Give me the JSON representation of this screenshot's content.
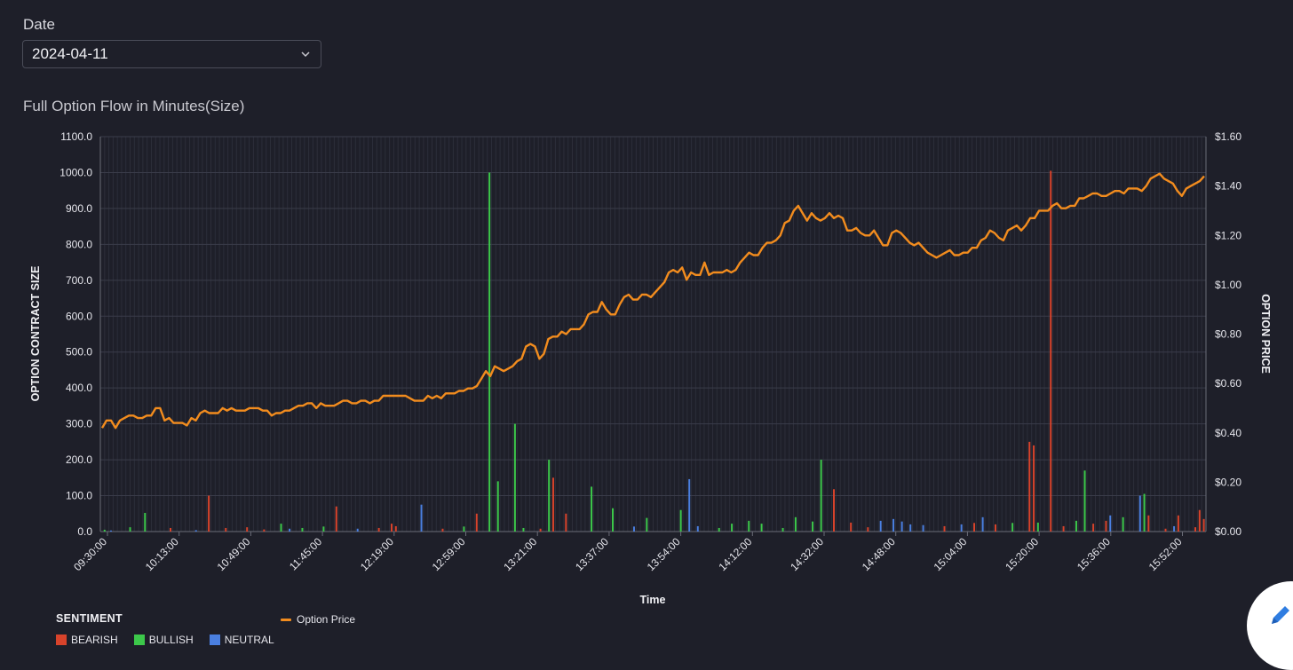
{
  "date_picker": {
    "label": "Date",
    "value": "2024-04-11"
  },
  "chart_title": "Full Option Flow in Minutes(Size)",
  "legend": {
    "title": "SENTIMENT",
    "items": [
      {
        "label": "BEARISH",
        "color": "#d8432b"
      },
      {
        "label": "BULLISH",
        "color": "#3cc84a"
      },
      {
        "label": "NEUTRAL",
        "color": "#4a7fe0"
      }
    ],
    "line_label": "Option Price",
    "line_color": "#f28c1e"
  },
  "fab": {
    "icon": "pencil-icon"
  },
  "chart_data": {
    "type": "bar",
    "xlabel": "Time",
    "ylabel": "OPTION CONTRACT SIZE",
    "y2label": "OPTION PRICE",
    "ylim": [
      0,
      1100
    ],
    "y2lim": [
      0,
      1.6
    ],
    "yticks": [
      "1100.0",
      "1000.0",
      "900.0",
      "800.0",
      "700.0",
      "600.0",
      "500.0",
      "400.0",
      "300.0",
      "200.0",
      "100.0",
      "0.0"
    ],
    "y2ticks": [
      "$1.60",
      "$1.40",
      "$1.20",
      "$1.00",
      "$0.80",
      "$0.60",
      "$0.40",
      "$0.20",
      "$0.00"
    ],
    "xticks": [
      "09:30:00",
      "10:13:00",
      "10:49:00",
      "11:45:00",
      "12:19:00",
      "12:59:00",
      "13:21:00",
      "13:37:00",
      "13:54:00",
      "14:12:00",
      "14:32:00",
      "14:48:00",
      "15:04:00",
      "15:20:00",
      "15:36:00",
      "15:52:00"
    ],
    "grid": true,
    "legend_position": "bottom-left",
    "bars": [
      {
        "i": 0.5,
        "v": 5,
        "s": "bullish"
      },
      {
        "i": 2,
        "v": 3,
        "s": "neutral"
      },
      {
        "i": 6.5,
        "v": 12,
        "s": "bullish"
      },
      {
        "i": 10,
        "v": 52,
        "s": "bullish"
      },
      {
        "i": 16,
        "v": 10,
        "s": "bearish"
      },
      {
        "i": 22,
        "v": 4,
        "s": "neutral"
      },
      {
        "i": 25,
        "v": 100,
        "s": "bearish"
      },
      {
        "i": 29,
        "v": 10,
        "s": "bearish"
      },
      {
        "i": 34,
        "v": 12,
        "s": "bearish"
      },
      {
        "i": 38,
        "v": 6,
        "s": "bearish"
      },
      {
        "i": 42,
        "v": 22,
        "s": "bullish"
      },
      {
        "i": 44,
        "v": 8,
        "s": "neutral"
      },
      {
        "i": 47,
        "v": 10,
        "s": "bullish"
      },
      {
        "i": 52,
        "v": 14,
        "s": "bullish"
      },
      {
        "i": 55,
        "v": 70,
        "s": "bearish"
      },
      {
        "i": 60,
        "v": 8,
        "s": "neutral"
      },
      {
        "i": 65,
        "v": 10,
        "s": "bearish"
      },
      {
        "i": 68,
        "v": 22,
        "s": "bearish"
      },
      {
        "i": 69,
        "v": 15,
        "s": "bearish"
      },
      {
        "i": 75,
        "v": 75,
        "s": "neutral"
      },
      {
        "i": 80,
        "v": 8,
        "s": "bearish"
      },
      {
        "i": 85,
        "v": 14,
        "s": "bullish"
      },
      {
        "i": 88,
        "v": 50,
        "s": "bearish"
      },
      {
        "i": 91,
        "v": 1000,
        "s": "bullish"
      },
      {
        "i": 93,
        "v": 140,
        "s": "bullish"
      },
      {
        "i": 97,
        "v": 300,
        "s": "bullish"
      },
      {
        "i": 99,
        "v": 10,
        "s": "bullish"
      },
      {
        "i": 103,
        "v": 8,
        "s": "bearish"
      },
      {
        "i": 105,
        "v": 200,
        "s": "bullish"
      },
      {
        "i": 106,
        "v": 150,
        "s": "bearish"
      },
      {
        "i": 109,
        "v": 50,
        "s": "bearish"
      },
      {
        "i": 115,
        "v": 125,
        "s": "bullish"
      },
      {
        "i": 120,
        "v": 65,
        "s": "bullish"
      },
      {
        "i": 125,
        "v": 14,
        "s": "neutral"
      },
      {
        "i": 128,
        "v": 38,
        "s": "bullish"
      },
      {
        "i": 136,
        "v": 60,
        "s": "bullish"
      },
      {
        "i": 138,
        "v": 146,
        "s": "neutral"
      },
      {
        "i": 140,
        "v": 15,
        "s": "neutral"
      },
      {
        "i": 145,
        "v": 10,
        "s": "bullish"
      },
      {
        "i": 148,
        "v": 22,
        "s": "bullish"
      },
      {
        "i": 152,
        "v": 30,
        "s": "bullish"
      },
      {
        "i": 155,
        "v": 22,
        "s": "bullish"
      },
      {
        "i": 160,
        "v": 10,
        "s": "bullish"
      },
      {
        "i": 163,
        "v": 40,
        "s": "bullish"
      },
      {
        "i": 167,
        "v": 28,
        "s": "bullish"
      },
      {
        "i": 169,
        "v": 200,
        "s": "bullish"
      },
      {
        "i": 172,
        "v": 118,
        "s": "bearish"
      },
      {
        "i": 176,
        "v": 25,
        "s": "bearish"
      },
      {
        "i": 180,
        "v": 12,
        "s": "bearish"
      },
      {
        "i": 183,
        "v": 30,
        "s": "neutral"
      },
      {
        "i": 186,
        "v": 35,
        "s": "neutral"
      },
      {
        "i": 188,
        "v": 28,
        "s": "neutral"
      },
      {
        "i": 190,
        "v": 20,
        "s": "neutral"
      },
      {
        "i": 193,
        "v": 18,
        "s": "neutral"
      },
      {
        "i": 198,
        "v": 15,
        "s": "bearish"
      },
      {
        "i": 202,
        "v": 20,
        "s": "neutral"
      },
      {
        "i": 205,
        "v": 24,
        "s": "bearish"
      },
      {
        "i": 207,
        "v": 40,
        "s": "neutral"
      },
      {
        "i": 210,
        "v": 20,
        "s": "bearish"
      },
      {
        "i": 214,
        "v": 24,
        "s": "bullish"
      },
      {
        "i": 218,
        "v": 250,
        "s": "bearish"
      },
      {
        "i": 219,
        "v": 240,
        "s": "bearish"
      },
      {
        "i": 220,
        "v": 25,
        "s": "bullish"
      },
      {
        "i": 223,
        "v": 1005,
        "s": "bearish"
      },
      {
        "i": 226,
        "v": 15,
        "s": "bearish"
      },
      {
        "i": 229,
        "v": 30,
        "s": "bullish"
      },
      {
        "i": 231,
        "v": 170,
        "s": "bullish"
      },
      {
        "i": 233,
        "v": 22,
        "s": "bearish"
      },
      {
        "i": 236,
        "v": 30,
        "s": "bearish"
      },
      {
        "i": 237,
        "v": 45,
        "s": "neutral"
      },
      {
        "i": 240,
        "v": 40,
        "s": "bullish"
      },
      {
        "i": 244,
        "v": 100,
        "s": "neutral"
      },
      {
        "i": 245,
        "v": 105,
        "s": "bullish"
      },
      {
        "i": 246,
        "v": 45,
        "s": "bearish"
      },
      {
        "i": 250,
        "v": 8,
        "s": "bearish"
      },
      {
        "i": 252,
        "v": 15,
        "s": "neutral"
      },
      {
        "i": 253,
        "v": 45,
        "s": "bearish"
      },
      {
        "i": 257,
        "v": 12,
        "s": "bearish"
      },
      {
        "i": 258,
        "v": 60,
        "s": "bearish"
      },
      {
        "i": 259,
        "v": 35,
        "s": "bearish"
      }
    ],
    "price_line": [
      0.42,
      0.45,
      0.45,
      0.42,
      0.45,
      0.46,
      0.47,
      0.47,
      0.46,
      0.46,
      0.47,
      0.47,
      0.5,
      0.5,
      0.45,
      0.46,
      0.44,
      0.44,
      0.44,
      0.43,
      0.46,
      0.45,
      0.48,
      0.49,
      0.48,
      0.48,
      0.48,
      0.5,
      0.49,
      0.5,
      0.49,
      0.49,
      0.49,
      0.5,
      0.5,
      0.5,
      0.49,
      0.49,
      0.47,
      0.48,
      0.48,
      0.49,
      0.49,
      0.5,
      0.51,
      0.51,
      0.52,
      0.52,
      0.5,
      0.52,
      0.51,
      0.51,
      0.51,
      0.52,
      0.53,
      0.53,
      0.52,
      0.52,
      0.53,
      0.53,
      0.52,
      0.53,
      0.53,
      0.55,
      0.55,
      0.55,
      0.55,
      0.55,
      0.55,
      0.54,
      0.53,
      0.53,
      0.53,
      0.55,
      0.54,
      0.55,
      0.54,
      0.56,
      0.56,
      0.56,
      0.57,
      0.57,
      0.58,
      0.58,
      0.59,
      0.62,
      0.65,
      0.63,
      0.67,
      0.66,
      0.65,
      0.66,
      0.67,
      0.69,
      0.7,
      0.75,
      0.76,
      0.75,
      0.7,
      0.72,
      0.78,
      0.79,
      0.79,
      0.81,
      0.8,
      0.82,
      0.82,
      0.82,
      0.84,
      0.88,
      0.89,
      0.89,
      0.93,
      0.9,
      0.88,
      0.88,
      0.92,
      0.95,
      0.96,
      0.94,
      0.94,
      0.96,
      0.96,
      0.95,
      0.97,
      0.99,
      1.01,
      1.05,
      1.06,
      1.05,
      1.07,
      1.02,
      1.05,
      1.04,
      1.04,
      1.09,
      1.04,
      1.05,
      1.05,
      1.05,
      1.06,
      1.05,
      1.06,
      1.09,
      1.11,
      1.13,
      1.12,
      1.12,
      1.15,
      1.17,
      1.17,
      1.18,
      1.2,
      1.25,
      1.26,
      1.3,
      1.32,
      1.29,
      1.26,
      1.29,
      1.27,
      1.26,
      1.27,
      1.29,
      1.27,
      1.28,
      1.27,
      1.22,
      1.22,
      1.23,
      1.21,
      1.2,
      1.2,
      1.22,
      1.19,
      1.16,
      1.16,
      1.21,
      1.22,
      1.21,
      1.19,
      1.17,
      1.16,
      1.17,
      1.15,
      1.13,
      1.12,
      1.11,
      1.12,
      1.13,
      1.14,
      1.12,
      1.12,
      1.13,
      1.13,
      1.15,
      1.15,
      1.18,
      1.19,
      1.22,
      1.21,
      1.19,
      1.18,
      1.22,
      1.23,
      1.24,
      1.22,
      1.24,
      1.27,
      1.27,
      1.3,
      1.3,
      1.3,
      1.32,
      1.33,
      1.31,
      1.31,
      1.32,
      1.32,
      1.35,
      1.35,
      1.36,
      1.37,
      1.37,
      1.36,
      1.36,
      1.37,
      1.38,
      1.38,
      1.37,
      1.39,
      1.39,
      1.39,
      1.38,
      1.4,
      1.43,
      1.44,
      1.45,
      1.43,
      1.42,
      1.41,
      1.38,
      1.36,
      1.39,
      1.4,
      1.41,
      1.42,
      1.44
    ]
  }
}
